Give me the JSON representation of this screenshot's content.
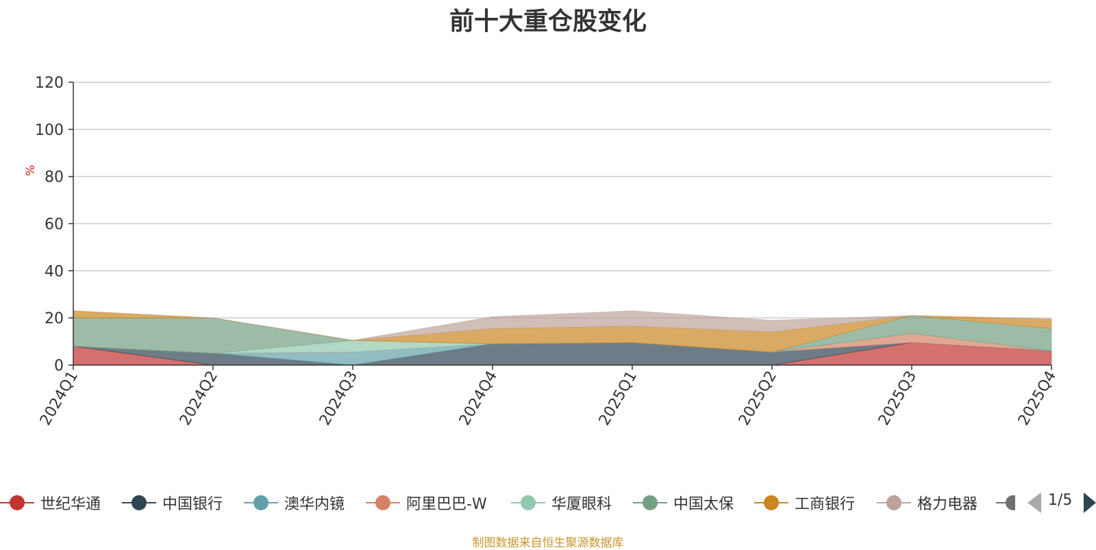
{
  "chart_data": {
    "type": "area",
    "stacked": true,
    "title": "前十大重仓股变化",
    "ylabel": "%",
    "ylim": [
      0,
      120
    ],
    "yticks": [
      0,
      20,
      40,
      60,
      80,
      100,
      120
    ],
    "grid": true,
    "legend_position": "bottom",
    "categories": [
      "2024Q1",
      "2024Q2",
      "2024Q3",
      "2024Q4",
      "2025Q1",
      "2025Q2",
      "2025Q3",
      "2025Q4"
    ],
    "series": [
      {
        "name": "世纪华通",
        "color": "#c23531",
        "values": [
          8,
          0,
          0,
          0,
          0,
          0,
          9.5,
          6
        ]
      },
      {
        "name": "中国银行",
        "color": "#2f4554",
        "values": [
          0,
          5,
          0,
          9,
          9.5,
          5.5,
          0,
          0
        ]
      },
      {
        "name": "澳华内镜",
        "color": "#61a0a8",
        "values": [
          0,
          0,
          5.5,
          0,
          0,
          0,
          0,
          0
        ]
      },
      {
        "name": "阿里巴巴-W",
        "color": "#d48265",
        "values": [
          0,
          0,
          0,
          0,
          0,
          0,
          4,
          0
        ]
      },
      {
        "name": "华厦眼科",
        "color": "#91c7ae",
        "values": [
          0,
          0,
          5,
          0,
          0,
          0,
          0,
          0
        ]
      },
      {
        "name": "中国太保",
        "color": "#749f83",
        "values": [
          12,
          15,
          0,
          0,
          0,
          0,
          7.5,
          9.5
        ]
      },
      {
        "name": "工商银行",
        "color": "#ca8622",
        "values": [
          3,
          0,
          0,
          6.5,
          7,
          8.5,
          0,
          4
        ]
      },
      {
        "name": "格力电器",
        "color": "#bda29a",
        "values": [
          0,
          0,
          0,
          5,
          6.5,
          5,
          0,
          0
        ]
      }
    ],
    "legend_pager": "1/5"
  },
  "source_note": "制图数据来自恒生聚源数据库"
}
